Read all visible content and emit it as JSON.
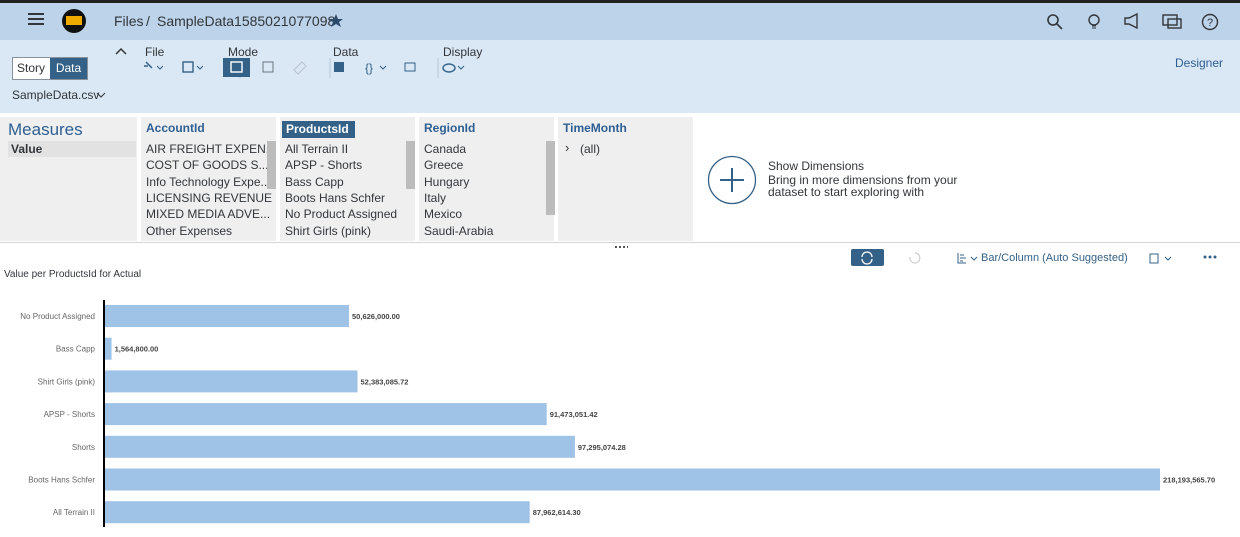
{
  "header": {
    "root": "Files",
    "separator": "/",
    "file_name": "SampleData1585021077098"
  },
  "toolbar": {
    "story": "Story",
    "data": "Data",
    "groups": [
      "File",
      "Mode",
      "Data",
      "Display"
    ],
    "designer": "Designer",
    "dataset": "SampleData.csv"
  },
  "measures": {
    "title": "Measures",
    "items": [
      "Value"
    ]
  },
  "dimensions": [
    {
      "title": "AccountId",
      "items": [
        "AIR FREIGHT EXPEN...",
        "COST OF GOODS S...",
        "Info Technology Expe...",
        "LICENSING REVENUE",
        "MIXED MEDIA ADVE...",
        "Other Expenses"
      ]
    },
    {
      "title": "ProductsId",
      "items": [
        "All Terrain II",
        "APSP - Shorts",
        "Bass Capp",
        "Boots Hans Schfer",
        "No Product Assigned",
        "Shirt Girls (pink)"
      ]
    },
    {
      "title": "RegionId",
      "items": [
        "Canada",
        "Greece",
        "Hungary",
        "Italy",
        "Mexico",
        "Saudi-Arabia"
      ]
    },
    {
      "title": "TimeMonth",
      "items": [
        "(all)"
      ]
    }
  ],
  "show_dimensions": {
    "title": "Show Dimensions",
    "lines": [
      "Bring in more dimensions from your",
      "dataset to start exploring with"
    ]
  },
  "chart_toolbar": {
    "chart_type": "Bar/Column (Auto Suggested)"
  },
  "chart_data": {
    "type": "bar",
    "orientation": "horizontal",
    "title": "Value per ProductsId for Actual",
    "categories": [
      "No Product Assigned",
      "Bass Capp",
      "Shirt Girls (pink)",
      "APSP - Shorts",
      "Shorts",
      "Boots Hans Schfer",
      "All Terrain II"
    ],
    "values": [
      50626000,
      1564800,
      52383085.72,
      91473051.42,
      97295074.28,
      218193565.7,
      87962614.3
    ],
    "value_labels": [
      "50,626,000.00",
      "1,564,800.00",
      "52,383,085.72",
      "91,473,051.42",
      "97,295,074.28",
      "218,193,565.70",
      "87,962,614.30"
    ],
    "color": "#9fc2e7"
  }
}
